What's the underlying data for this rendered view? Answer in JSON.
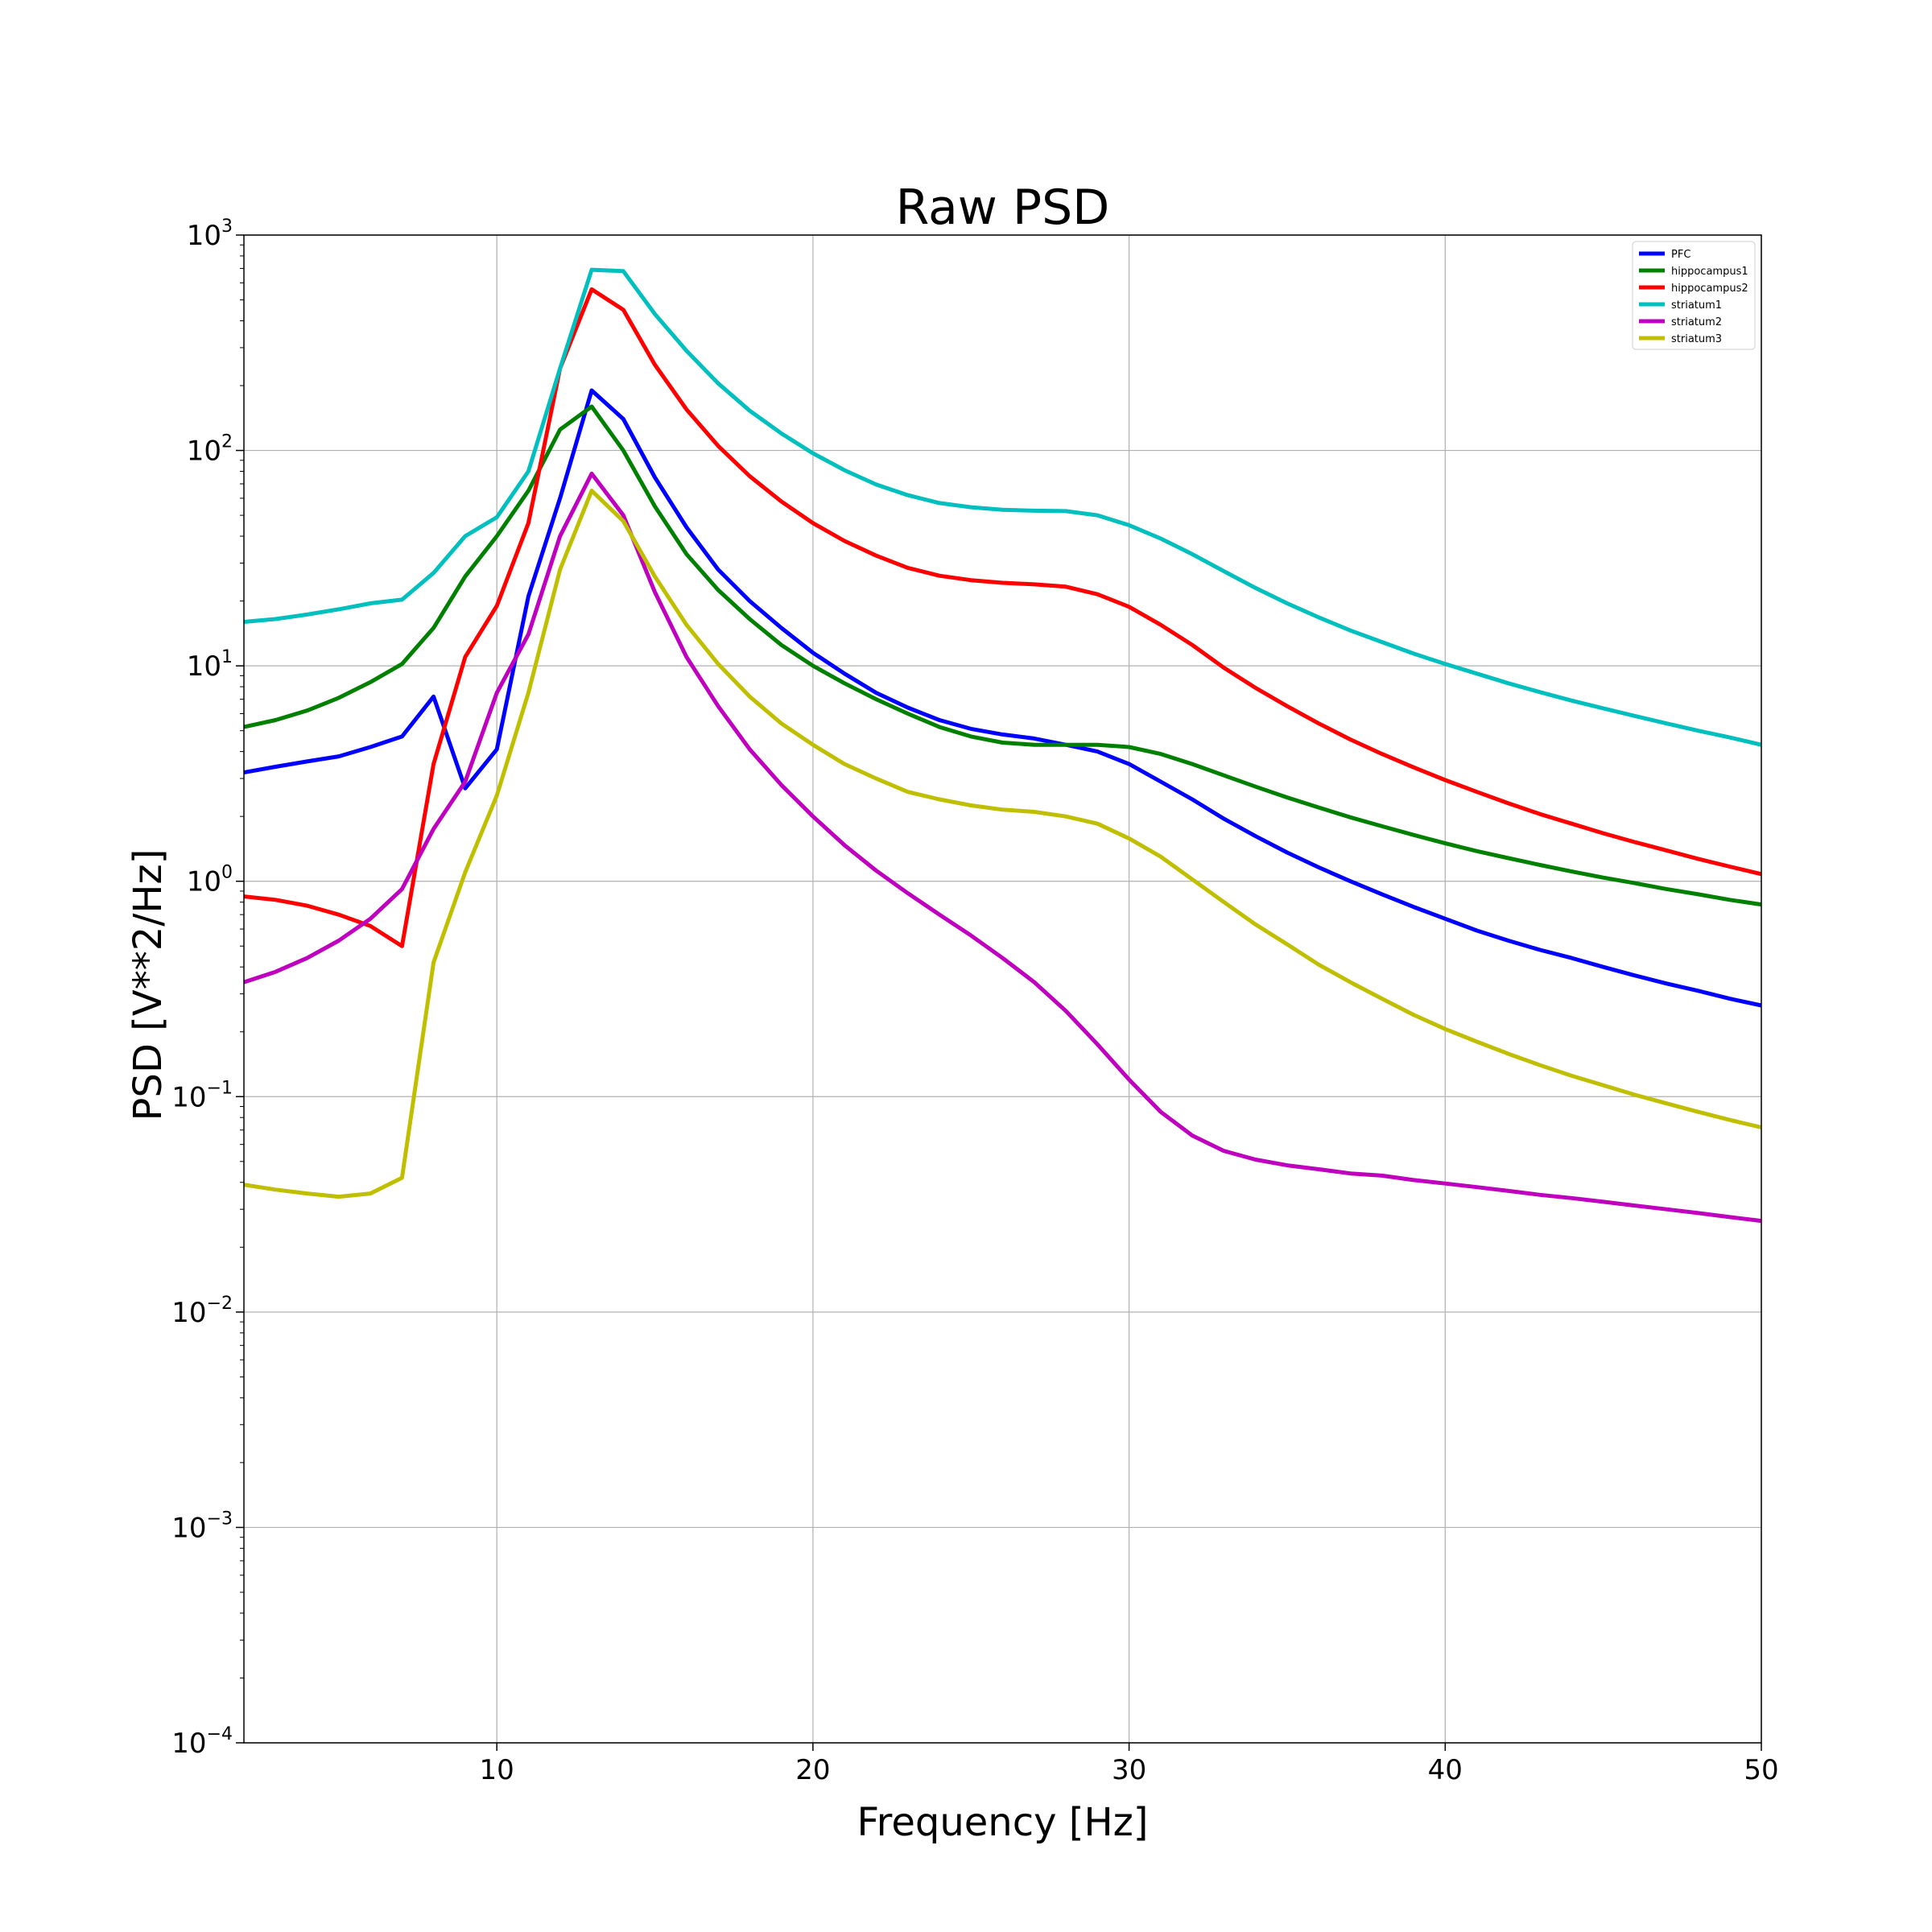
{
  "chart_data": {
    "type": "line",
    "title": "Raw PSD",
    "xlabel": "Frequency [Hz]",
    "ylabel": "PSD [V**2/Hz]",
    "yscale": "log",
    "xlim": [
      2,
      50
    ],
    "ylim": [
      0.0001,
      1000
    ],
    "grid": true,
    "legend_position": "top-right",
    "x_ticks": [
      10,
      20,
      30,
      40,
      50
    ],
    "y_ticks": [
      {
        "value": 0.0001,
        "base": "10",
        "exp": "−4"
      },
      {
        "value": 0.001,
        "base": "10",
        "exp": "−3"
      },
      {
        "value": 0.01,
        "base": "10",
        "exp": "−2"
      },
      {
        "value": 0.1,
        "base": "10",
        "exp": "−1"
      },
      {
        "value": 1,
        "base": "10",
        "exp": "0"
      },
      {
        "value": 10,
        "base": "10",
        "exp": "1"
      },
      {
        "value": 100,
        "base": "10",
        "exp": "2"
      },
      {
        "value": 1000,
        "base": "10",
        "exp": "3"
      }
    ],
    "x": [
      2,
      3,
      4,
      5,
      6,
      7,
      8,
      9,
      10,
      11,
      12,
      13,
      14,
      15,
      16,
      17,
      18,
      19,
      20,
      21,
      22,
      23,
      24,
      25,
      26,
      27,
      28,
      29,
      30,
      31,
      32,
      33,
      34,
      35,
      36,
      37,
      38,
      39,
      40,
      41,
      42,
      43,
      44,
      45,
      46,
      47,
      48,
      49,
      50
    ],
    "series": [
      {
        "name": "PFC",
        "color": "#0000ff",
        "values": [
          3.2,
          3.4,
          3.6,
          3.8,
          4.2,
          4.7,
          7.2,
          2.7,
          4.1,
          21,
          60,
          190,
          140,
          75,
          44,
          28,
          20,
          15,
          11.5,
          9.2,
          7.5,
          6.4,
          5.6,
          5.1,
          4.8,
          4.6,
          4.3,
          4.0,
          3.5,
          2.9,
          2.4,
          1.95,
          1.62,
          1.36,
          1.16,
          1.0,
          0.87,
          0.76,
          0.67,
          0.59,
          0.53,
          0.48,
          0.44,
          0.4,
          0.365,
          0.335,
          0.31,
          0.285,
          0.265
        ]
      },
      {
        "name": "hippocampus1",
        "color": "#008000",
        "values": [
          5.2,
          5.6,
          6.2,
          7.1,
          8.4,
          10.2,
          15,
          26,
          40,
          65,
          125,
          160,
          100,
          55,
          33,
          22.5,
          16.5,
          12.5,
          10,
          8.3,
          7,
          6,
          5.2,
          4.7,
          4.4,
          4.3,
          4.3,
          4.3,
          4.2,
          3.9,
          3.5,
          3.1,
          2.75,
          2.45,
          2.2,
          1.98,
          1.8,
          1.64,
          1.5,
          1.38,
          1.28,
          1.19,
          1.11,
          1.04,
          0.98,
          0.92,
          0.87,
          0.82,
          0.78
        ]
      },
      {
        "name": "hippocampus2",
        "color": "#ff0000",
        "values": [
          0.85,
          0.82,
          0.77,
          0.7,
          0.62,
          0.5,
          3.5,
          11,
          19,
          46,
          240,
          560,
          450,
          250,
          155,
          105,
          76,
          58,
          46,
          38,
          32.5,
          28.5,
          26.2,
          25,
          24.3,
          23.9,
          23.3,
          21.5,
          18.8,
          15.5,
          12.5,
          9.8,
          7.9,
          6.5,
          5.4,
          4.55,
          3.9,
          3.38,
          2.95,
          2.6,
          2.3,
          2.05,
          1.85,
          1.67,
          1.52,
          1.39,
          1.27,
          1.17,
          1.08
        ]
      },
      {
        "name": "striatum1",
        "color": "#00bfbf",
        "values": [
          16,
          16.5,
          17.3,
          18.3,
          19.5,
          20.3,
          27,
          40,
          49,
          80,
          240,
          690,
          680,
          430,
          290,
          205,
          153,
          120,
          97,
          81,
          69.5,
          62,
          57,
          54.5,
          53,
          52.5,
          52.3,
          50,
          45,
          39,
          33,
          27.5,
          23,
          19.5,
          16.8,
          14.6,
          12.9,
          11.4,
          10.2,
          9.2,
          8.3,
          7.55,
          6.9,
          6.35,
          5.85,
          5.4,
          5,
          4.65,
          4.3
        ]
      },
      {
        "name": "striatum2",
        "color": "#bf00bf",
        "values": [
          0.34,
          0.38,
          0.44,
          0.53,
          0.67,
          0.92,
          1.75,
          2.9,
          7.5,
          14,
          40,
          78,
          50,
          22,
          11,
          6.5,
          4.1,
          2.8,
          2,
          1.47,
          1.12,
          0.88,
          0.7,
          0.56,
          0.44,
          0.34,
          0.25,
          0.175,
          0.12,
          0.085,
          0.066,
          0.056,
          0.051,
          0.048,
          0.046,
          0.044,
          0.043,
          0.041,
          0.0395,
          0.038,
          0.0365,
          0.035,
          0.0338,
          0.0325,
          0.0312,
          0.03,
          0.0288,
          0.0276,
          0.0265
        ]
      },
      {
        "name": "striatum3",
        "color": "#bfbf00",
        "values": [
          0.039,
          0.037,
          0.0355,
          0.0343,
          0.0355,
          0.042,
          0.42,
          1.1,
          2.5,
          7.5,
          28,
          65,
          47,
          26,
          15.5,
          10.2,
          7.2,
          5.4,
          4.3,
          3.5,
          3,
          2.6,
          2.4,
          2.25,
          2.15,
          2.1,
          2,
          1.85,
          1.58,
          1.3,
          1.02,
          0.8,
          0.63,
          0.51,
          0.41,
          0.34,
          0.285,
          0.24,
          0.206,
          0.18,
          0.158,
          0.14,
          0.125,
          0.113,
          0.102,
          0.093,
          0.085,
          0.078,
          0.072
        ]
      }
    ]
  }
}
